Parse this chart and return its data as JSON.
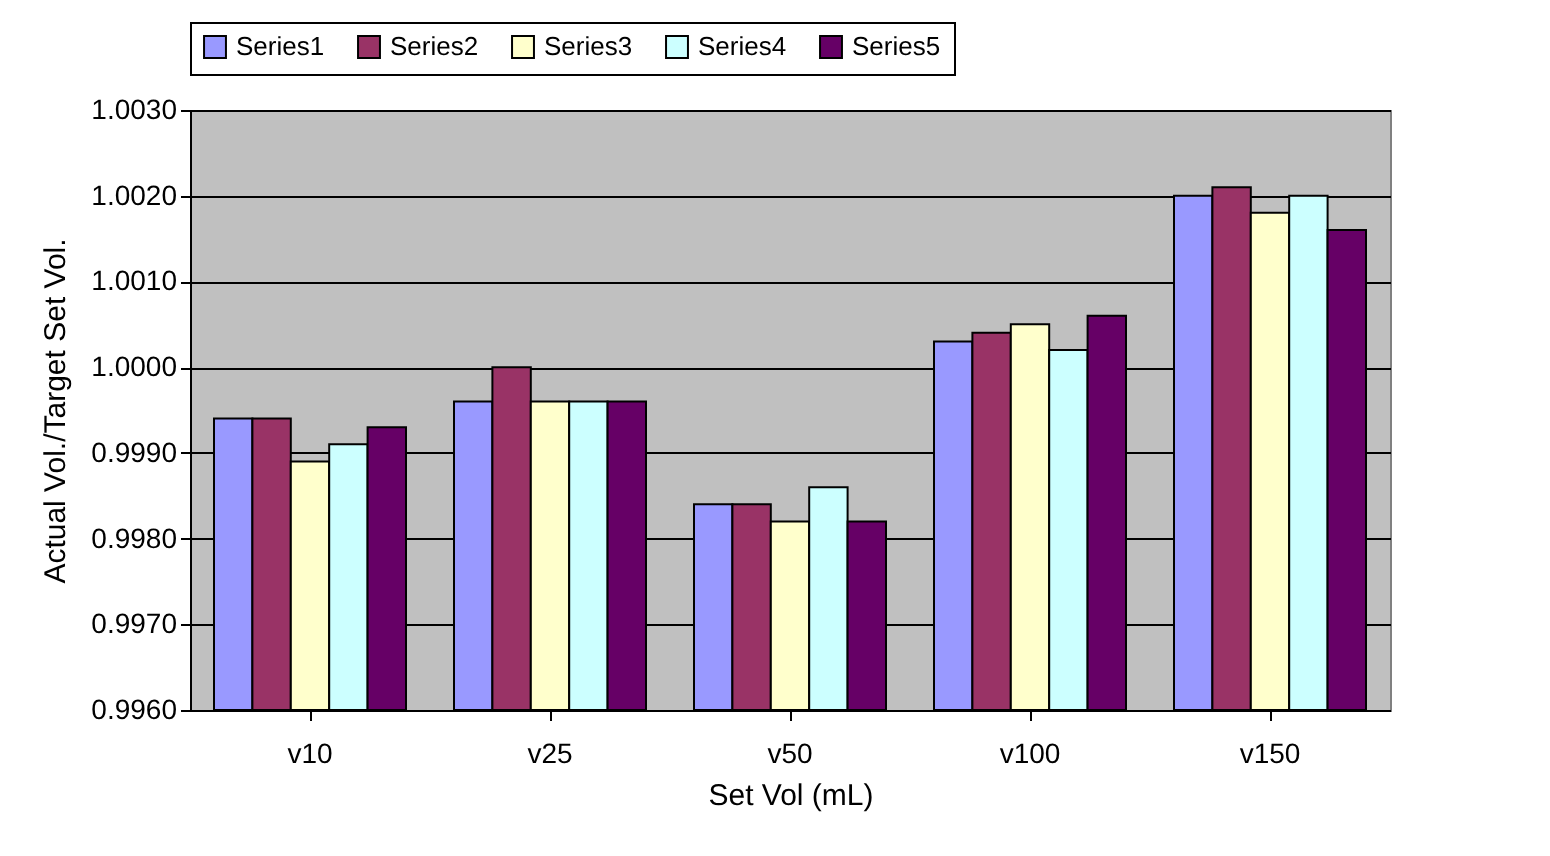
{
  "chart_data": {
    "type": "bar",
    "xlabel": "Set Vol (mL)",
    "ylabel": "Actual Vol./Target Set Vol.",
    "categories": [
      "v10",
      "v25",
      "v50",
      "v100",
      "v150"
    ],
    "series": [
      {
        "name": "Series1",
        "color": "#9999ff",
        "values": [
          0.9994,
          0.9996,
          0.9984,
          1.0003,
          1.002
        ]
      },
      {
        "name": "Series2",
        "color": "#993366",
        "values": [
          0.9994,
          1.0,
          0.9984,
          1.0004,
          1.0021
        ]
      },
      {
        "name": "Series3",
        "color": "#ffffcc",
        "values": [
          0.9989,
          0.9996,
          0.9982,
          1.0005,
          1.0018
        ]
      },
      {
        "name": "Series4",
        "color": "#ccffff",
        "values": [
          0.9991,
          0.9996,
          0.9986,
          1.0002,
          1.002
        ]
      },
      {
        "name": "Series5",
        "color": "#660066",
        "values": [
          0.9993,
          0.9996,
          0.9982,
          1.0006,
          1.0016
        ]
      }
    ],
    "ylim": [
      0.996,
      1.003
    ],
    "yticks": [
      {
        "value": 0.996,
        "label": "0.9960"
      },
      {
        "value": 0.997,
        "label": "0.9970"
      },
      {
        "value": 0.998,
        "label": "0.9980"
      },
      {
        "value": 0.999,
        "label": "0.9990"
      },
      {
        "value": 1.0,
        "label": "1.0000"
      },
      {
        "value": 1.001,
        "label": "1.0010"
      },
      {
        "value": 1.002,
        "label": "1.0020"
      },
      {
        "value": 1.003,
        "label": "1.0030"
      }
    ],
    "grid": "y",
    "legend": "top"
  }
}
